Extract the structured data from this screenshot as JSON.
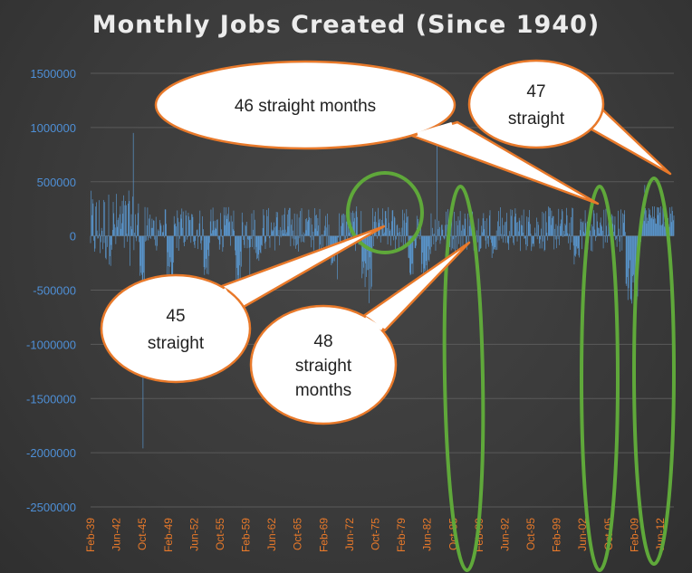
{
  "chart_data": {
    "type": "bar",
    "title": "Monthly Jobs Created (Since 1940)",
    "xlabel": "",
    "ylabel": "",
    "ylim": [
      -2500000,
      1500000
    ],
    "y_ticks": [
      "1500000",
      "1000000",
      "500000",
      "0",
      "-500000",
      "-1000000",
      "-1500000",
      "-2000000",
      "-2500000"
    ],
    "x_ticks": [
      "Feb-39",
      "Jun-42",
      "Oct-45",
      "Feb-49",
      "Jun-52",
      "Oct-55",
      "Feb-59",
      "Jun-62",
      "Oct-65",
      "Feb-69",
      "Jun-72",
      "Oct-75",
      "Feb-79",
      "Jun-82",
      "Oct-85",
      "Feb-89",
      "Jun-92",
      "Oct-95",
      "Feb-99",
      "Jun-02",
      "Oct-05",
      "Feb-09",
      "Jun-12"
    ],
    "x_range": [
      "Feb-39",
      "Mar-14"
    ],
    "series_color": "#5b9bd5",
    "grid": true,
    "legend": "none",
    "annotations": [
      {
        "text": "46 straight months"
      },
      {
        "text": "47 straight"
      },
      {
        "text": "45 straight"
      },
      {
        "text": "48 straight months"
      }
    ]
  },
  "colors": {
    "callout_border": "#e8792a",
    "ellipse": "#5fa83a",
    "gridline": "#5a5a5a"
  }
}
